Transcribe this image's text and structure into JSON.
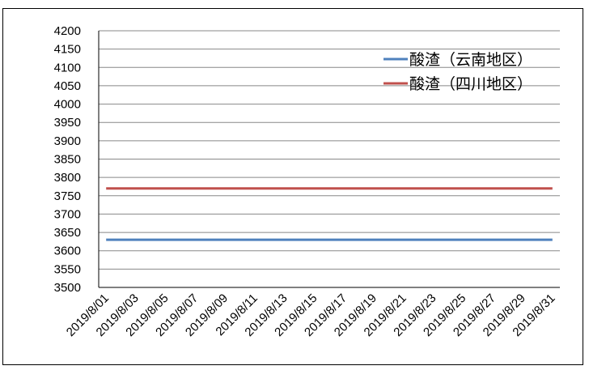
{
  "chart_data": {
    "type": "line",
    "title": "",
    "xlabel": "",
    "ylabel": "",
    "ylim": [
      3500,
      4200
    ],
    "ytick_step": 50,
    "grid": "horizontal",
    "legend_placement": "top-right",
    "x": [
      "2019/8/01",
      "2019/8/02",
      "2019/8/03",
      "2019/8/04",
      "2019/8/05",
      "2019/8/06",
      "2019/8/07",
      "2019/8/08",
      "2019/8/09",
      "2019/8/10",
      "2019/8/11",
      "2019/8/12",
      "2019/8/13",
      "2019/8/14",
      "2019/8/15",
      "2019/8/16",
      "2019/8/17",
      "2019/8/18",
      "2019/8/19",
      "2019/8/20",
      "2019/8/21",
      "2019/8/22",
      "2019/8/23",
      "2019/8/24",
      "2019/8/25",
      "2019/8/26",
      "2019/8/27",
      "2019/8/28",
      "2019/8/29",
      "2019/8/30",
      "2019/8/31"
    ],
    "xtick_labels": [
      "2019/8/01",
      "2019/8/03",
      "2019/8/05",
      "2019/8/07",
      "2019/8/09",
      "2019/8/11",
      "2019/8/13",
      "2019/8/15",
      "2019/8/17",
      "2019/8/19",
      "2019/8/21",
      "2019/8/23",
      "2019/8/25",
      "2019/8/27",
      "2019/8/29",
      "2019/8/31"
    ],
    "series": [
      {
        "name": "酸渣（云南地区）",
        "color": "#4f81bd",
        "constant": 3630
      },
      {
        "name": "酸渣（四川地区）",
        "color": "#c0504d",
        "constant": 3770
      }
    ]
  }
}
